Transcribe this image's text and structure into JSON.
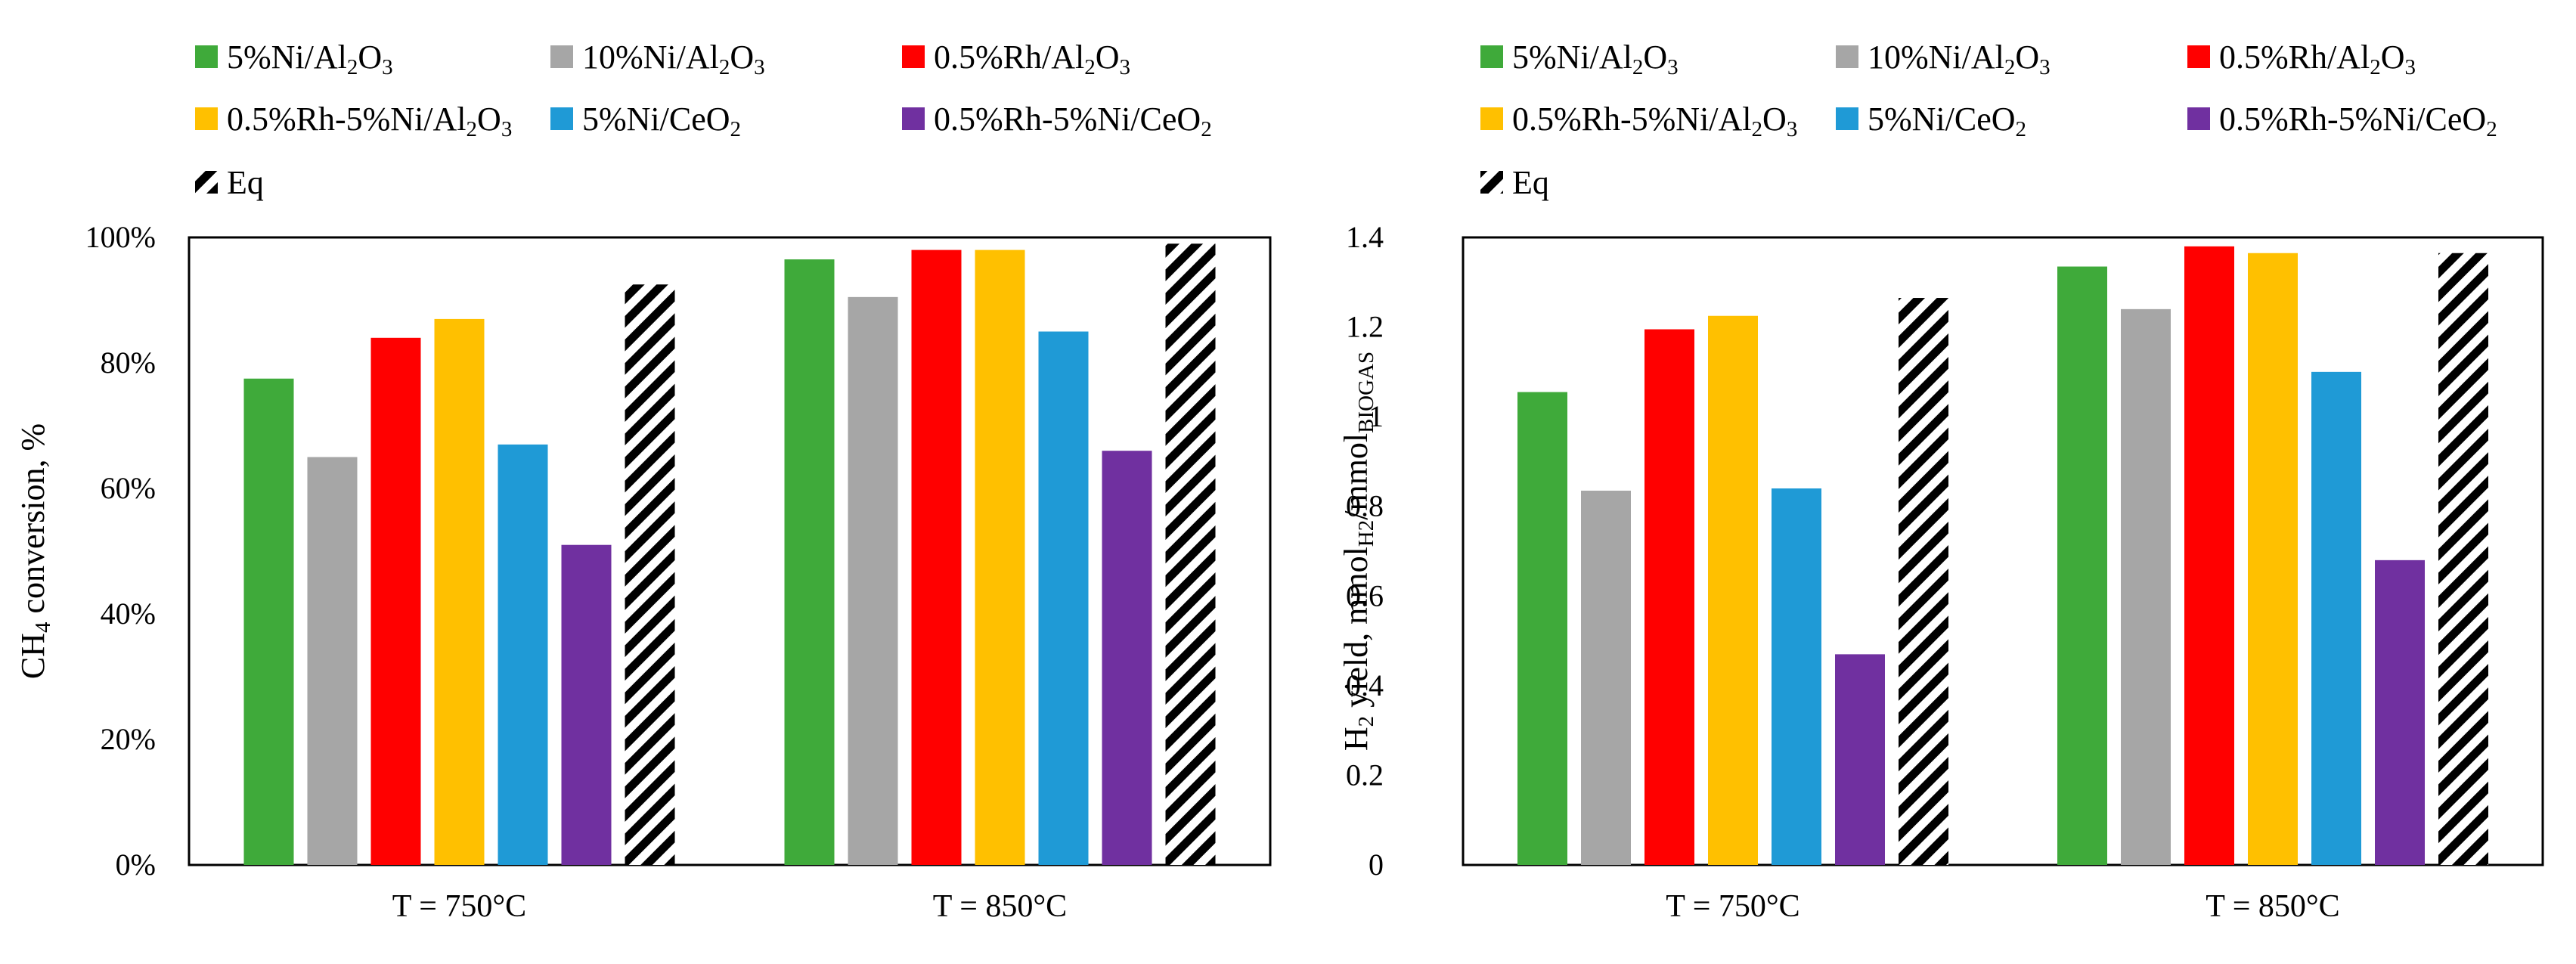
{
  "chart_data": [
    {
      "type": "bar",
      "categories": [
        "T = 750°C",
        "T = 850°C"
      ],
      "series": [
        {
          "name": "5%Ni/Al2O3",
          "label_parts": [
            {
              "t": "5%Ni/Al"
            },
            {
              "t": "2",
              "sub": true
            },
            {
              "t": "O"
            },
            {
              "t": "3",
              "sub": true
            }
          ],
          "color": "#3faa3a",
          "values": [
            77.5,
            96.5
          ]
        },
        {
          "name": "10%Ni/Al2O3",
          "label_parts": [
            {
              "t": "10%Ni/Al"
            },
            {
              "t": "2",
              "sub": true
            },
            {
              "t": "O"
            },
            {
              "t": "3",
              "sub": true
            }
          ],
          "color": "#a6a6a6",
          "values": [
            65,
            90.5
          ]
        },
        {
          "name": "0.5%Rh/Al2O3",
          "label_parts": [
            {
              "t": "0.5%Rh/Al"
            },
            {
              "t": "2",
              "sub": true
            },
            {
              "t": "O"
            },
            {
              "t": "3",
              "sub": true
            }
          ],
          "color": "#ff0000",
          "values": [
            84,
            98
          ]
        },
        {
          "name": "0.5%Rh-5%Ni/Al2O3",
          "label_parts": [
            {
              "t": "0.5%Rh-5%Ni/Al"
            },
            {
              "t": "2",
              "sub": true
            },
            {
              "t": "O"
            },
            {
              "t": "3",
              "sub": true
            }
          ],
          "color": "#ffc000",
          "values": [
            87,
            98
          ]
        },
        {
          "name": "5%Ni/CeO2",
          "label_parts": [
            {
              "t": "5%Ni/CeO"
            },
            {
              "t": "2",
              "sub": true
            }
          ],
          "color": "#1f9ad6",
          "values": [
            67,
            85
          ]
        },
        {
          "name": "0.5%Rh-5%Ni/CeO2",
          "label_parts": [
            {
              "t": "0.5%Rh-5%Ni/CeO"
            },
            {
              "t": "2",
              "sub": true
            }
          ],
          "color": "#7030a0",
          "values": [
            51,
            66
          ]
        },
        {
          "name": "Eq",
          "label_parts": [
            {
              "t": "Eq"
            }
          ],
          "pattern": "hatch",
          "values": [
            92.5,
            99
          ]
        }
      ],
      "title": "",
      "xlabel": "",
      "ylabel": "CH4 conversion, %",
      "ylabel_parts": [
        {
          "t": "CH"
        },
        {
          "t": "4",
          "sub": true
        },
        {
          "t": " conversion, %"
        }
      ],
      "ylim": [
        0,
        100
      ],
      "yticks": [
        0,
        20,
        40,
        60,
        80,
        100
      ],
      "ytick_labels": [
        "0%",
        "20%",
        "40%",
        "60%",
        "80%",
        "100%"
      ],
      "legend_position": "top",
      "grid": false
    },
    {
      "type": "bar",
      "categories": [
        "T = 750°C",
        "T = 850°C"
      ],
      "series": [
        {
          "name": "5%Ni/Al2O3",
          "label_parts": [
            {
              "t": "5%Ni/Al"
            },
            {
              "t": "2",
              "sub": true
            },
            {
              "t": "O"
            },
            {
              "t": "3",
              "sub": true
            }
          ],
          "color": "#3faa3a",
          "values": [
            1.055,
            1.335
          ]
        },
        {
          "name": "10%Ni/Al2O3",
          "label_parts": [
            {
              "t": "10%Ni/Al"
            },
            {
              "t": "2",
              "sub": true
            },
            {
              "t": "O"
            },
            {
              "t": "3",
              "sub": true
            }
          ],
          "color": "#a6a6a6",
          "values": [
            0.835,
            1.24
          ]
        },
        {
          "name": "0.5%Rh/Al2O3",
          "label_parts": [
            {
              "t": "0.5%Rh/Al"
            },
            {
              "t": "2",
              "sub": true
            },
            {
              "t": "O"
            },
            {
              "t": "3",
              "sub": true
            }
          ],
          "color": "#ff0000",
          "values": [
            1.195,
            1.38
          ]
        },
        {
          "name": "0.5%Rh-5%Ni/Al2O3",
          "label_parts": [
            {
              "t": "0.5%Rh-5%Ni/Al"
            },
            {
              "t": "2",
              "sub": true
            },
            {
              "t": "O"
            },
            {
              "t": "3",
              "sub": true
            }
          ],
          "color": "#ffc000",
          "values": [
            1.225,
            1.365
          ]
        },
        {
          "name": "5%Ni/CeO2",
          "label_parts": [
            {
              "t": "5%Ni/CeO"
            },
            {
              "t": "2",
              "sub": true
            }
          ],
          "color": "#1f9ad6",
          "values": [
            0.84,
            1.1
          ]
        },
        {
          "name": "0.5%Rh-5%Ni/CeO2",
          "label_parts": [
            {
              "t": "0.5%Rh-5%Ni/CeO"
            },
            {
              "t": "2",
              "sub": true
            }
          ],
          "color": "#7030a0",
          "values": [
            0.47,
            0.68
          ]
        },
        {
          "name": "Eq",
          "label_parts": [
            {
              "t": "Eq"
            }
          ],
          "pattern": "hatch",
          "values": [
            1.265,
            1.365
          ]
        }
      ],
      "title": "",
      "xlabel": "",
      "ylabel": "H2 yield, mmolH2/mmolBIOGAS",
      "ylabel_parts": [
        {
          "t": "H"
        },
        {
          "t": "2",
          "sub": true
        },
        {
          "t": " yield, mmol"
        },
        {
          "t": "H2",
          "sub": true
        },
        {
          "t": "/mmol"
        },
        {
          "t": "BIOGAS",
          "sub": true
        }
      ],
      "ylim": [
        0,
        1.4
      ],
      "yticks": [
        0,
        0.2,
        0.4,
        0.6,
        0.8,
        1.0,
        1.2,
        1.4
      ],
      "ytick_labels": [
        "0",
        "0.2",
        "0.4",
        "0.6",
        "0.8",
        "1",
        "1.2",
        "1.4"
      ],
      "legend_position": "top",
      "grid": false
    }
  ]
}
